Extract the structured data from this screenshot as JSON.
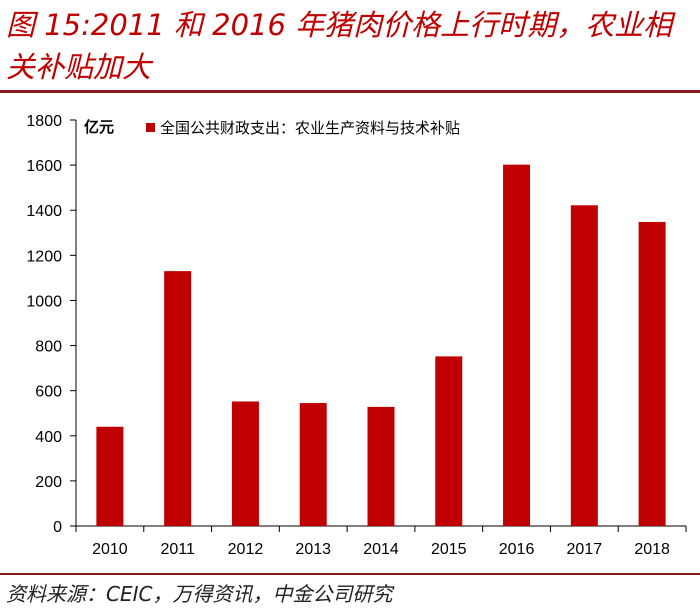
{
  "figure": {
    "title": "图 15:2011 和 2016 年猪肉价格上行时期，农业相关补贴加大",
    "source": "资料来源：CEIC，万得资讯，中金公司研究"
  },
  "chart_data": {
    "type": "bar",
    "categories": [
      "2010",
      "2011",
      "2012",
      "2013",
      "2014",
      "2015",
      "2016",
      "2017",
      "2018"
    ],
    "series": [
      {
        "name": "全国公共财政支出：农业生产资料与技术补贴",
        "values": [
          440,
          1130,
          552,
          545,
          528,
          752,
          1602,
          1422,
          1348
        ],
        "color": "#c00000"
      }
    ],
    "ylabel": "亿元",
    "ylim": [
      0,
      1800
    ],
    "yticks": [
      0,
      200,
      400,
      600,
      800,
      1000,
      1200,
      1400,
      1600,
      1800
    ],
    "grid": false,
    "legend_position": "top"
  }
}
